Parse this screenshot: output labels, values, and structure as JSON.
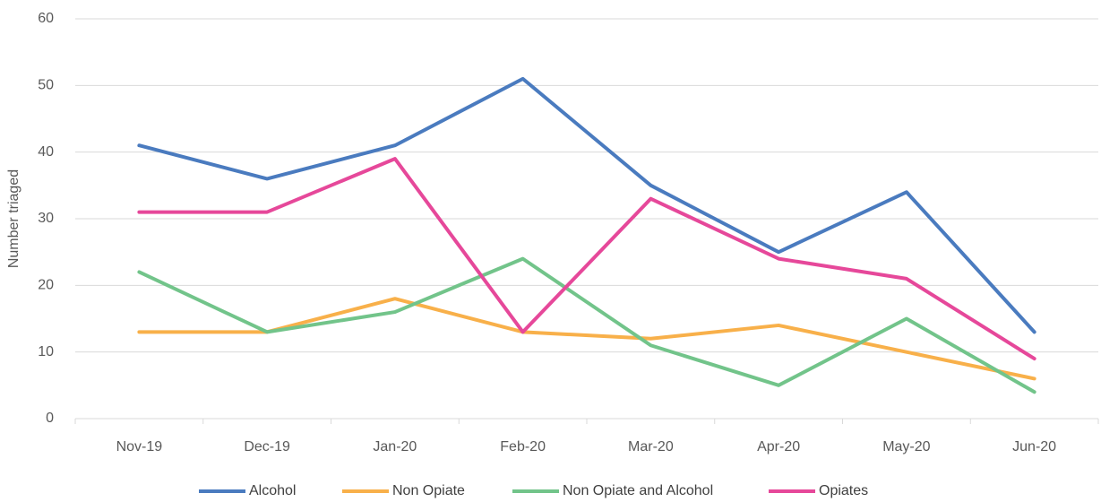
{
  "chart_data": {
    "type": "line",
    "y_label": "Number triaged",
    "categories": [
      "Nov-19",
      "Dec-19",
      "Jan-20",
      "Feb-20",
      "Mar-20",
      "Apr-20",
      "May-20",
      "Jun-20"
    ],
    "series": [
      {
        "name": "Alcohol",
        "color": "#4a7bbf",
        "values": [
          41,
          36,
          41,
          51,
          35,
          25,
          34,
          13
        ]
      },
      {
        "name": "Non Opiate",
        "color": "#f8b04a",
        "values": [
          13,
          13,
          18,
          13,
          12,
          14,
          10,
          6
        ]
      },
      {
        "name": "Non Opiate and Alcohol",
        "color": "#72c48a",
        "values": [
          22,
          13,
          16,
          24,
          11,
          5,
          15,
          4
        ]
      },
      {
        "name": "Opiates",
        "color": "#e6489a",
        "values": [
          31,
          31,
          39,
          13,
          33,
          24,
          21,
          9
        ]
      }
    ],
    "ylim": [
      0,
      60
    ],
    "yticks": [
      0,
      10,
      20,
      30,
      40,
      50,
      60
    ],
    "grid": true,
    "legend": "bottom"
  }
}
